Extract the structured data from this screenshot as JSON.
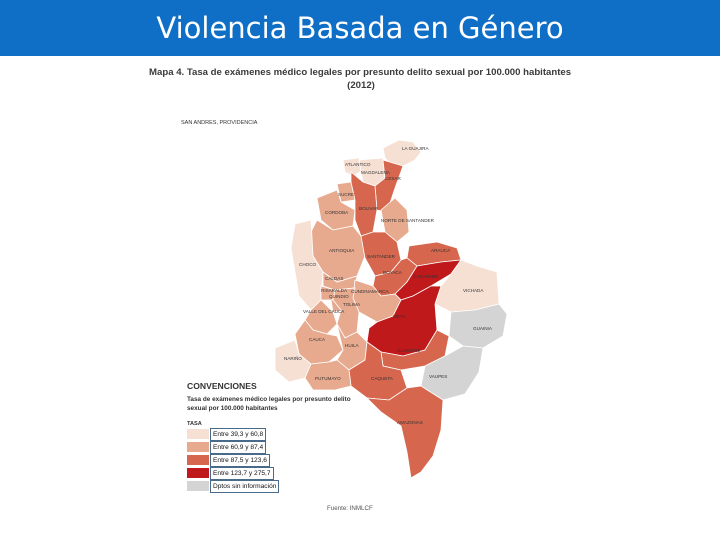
{
  "header": {
    "title": "Violencia Basada en Género"
  },
  "map": {
    "title_line1": "Mapa 4. Tasa de exámenes médico legales por presunto delito sexual por 100.000 habitantes",
    "title_line2": "(2012)",
    "inset_label": "SAN ANDRES, PROVIDENCIA",
    "departments": [
      {
        "name": "LA GUAJIRA",
        "class": 1
      },
      {
        "name": "ATLANTICO",
        "class": 1
      },
      {
        "name": "MAGDALENA",
        "class": 1
      },
      {
        "name": "CESAR",
        "class": 3
      },
      {
        "name": "SUCRE",
        "class": 2
      },
      {
        "name": "BOLIVAR",
        "class": 3
      },
      {
        "name": "CORDOBA",
        "class": 2
      },
      {
        "name": "NORTE DE SANTANDER",
        "class": 2
      },
      {
        "name": "ANTIOQUIA",
        "class": 2
      },
      {
        "name": "CHOCO",
        "class": 1
      },
      {
        "name": "SANTANDER",
        "class": 3
      },
      {
        "name": "ARAUCA",
        "class": 3
      },
      {
        "name": "BOYACA",
        "class": 3
      },
      {
        "name": "CASANARE",
        "class": 4
      },
      {
        "name": "CALDAS",
        "class": 2
      },
      {
        "name": "RISARALDA",
        "class": 2
      },
      {
        "name": "CUNDINAMARCA",
        "class": 2
      },
      {
        "name": "QUINDIO",
        "class": 2
      },
      {
        "name": "TOLIMA",
        "class": 2
      },
      {
        "name": "VALLE DEL CAUCA",
        "class": 2
      },
      {
        "name": "VICHADA",
        "class": 1
      },
      {
        "name": "META",
        "class": 4
      },
      {
        "name": "CAUCA",
        "class": 2
      },
      {
        "name": "HUILA",
        "class": 2
      },
      {
        "name": "GUAINIA",
        "class": 5
      },
      {
        "name": "NARIÑO",
        "class": 1
      },
      {
        "name": "GUAVIARE",
        "class": 3
      },
      {
        "name": "CAQUETA",
        "class": 3
      },
      {
        "name": "PUTUMAYO",
        "class": 2
      },
      {
        "name": "VAUPES",
        "class": 5
      },
      {
        "name": "AMAZONAS",
        "class": 3
      }
    ]
  },
  "legend": {
    "title": "CONVENCIONES",
    "subtitle": "Tasa de exámenes médico legales por presunto delito sexual por 100.000 habitantes",
    "tasa_label": "TASA",
    "items": [
      {
        "label": "Entre 39,3 y 60,8",
        "color": "#f6e0d4"
      },
      {
        "label": "Entre 60,9 y 87,4",
        "color": "#e8aa8e"
      },
      {
        "label": "Entre 87,5 y 123,6",
        "color": "#d6674e"
      },
      {
        "label": "Entre 123,7 y 275,7",
        "color": "#c0191c"
      },
      {
        "label": "Dptos sin información",
        "color": "#d4d4d4"
      }
    ]
  },
  "source": "Fuente: INMLCF"
}
